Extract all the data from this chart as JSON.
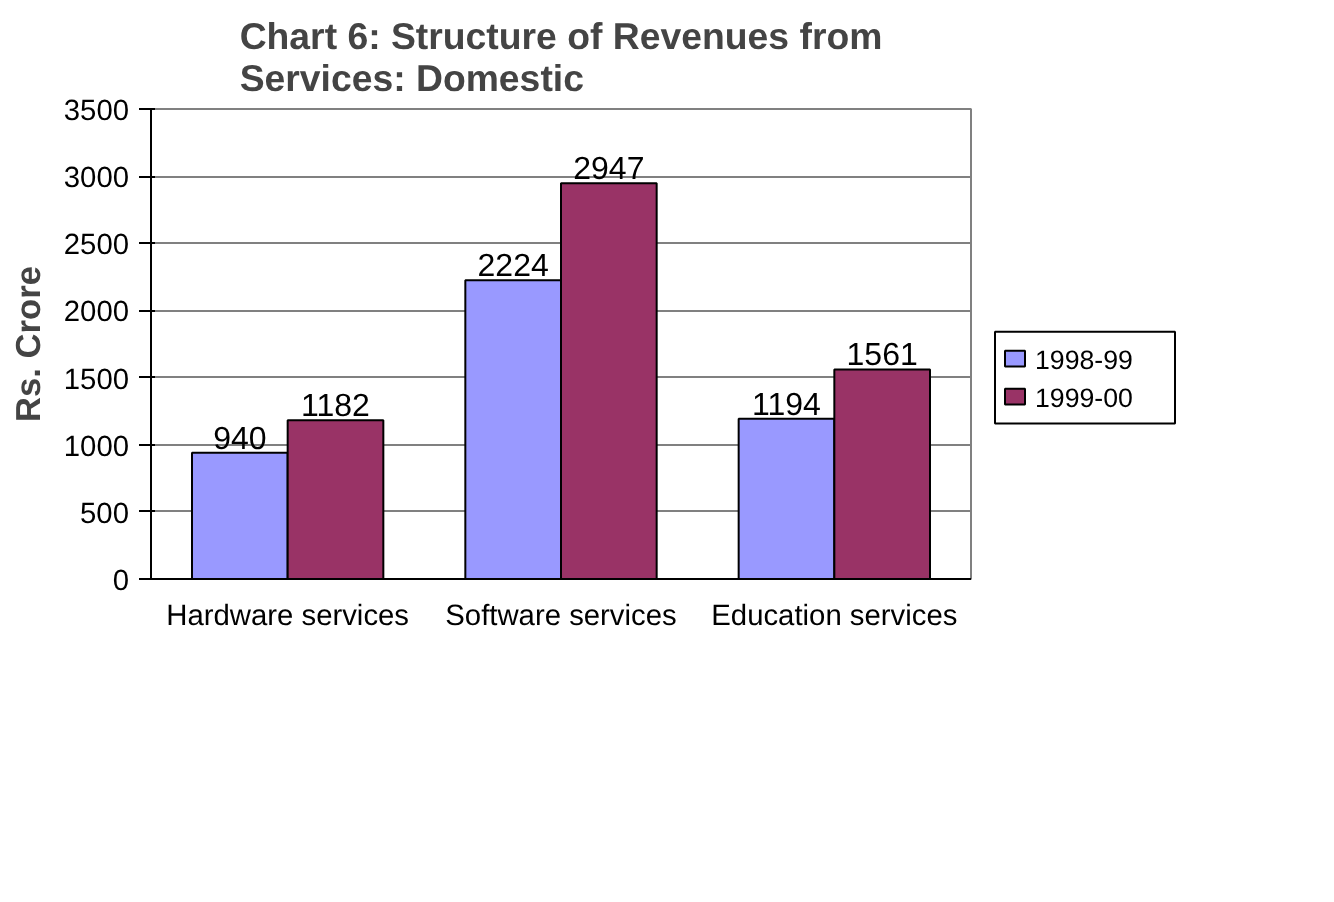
{
  "chart_data": {
    "type": "bar",
    "title": "Chart 6: Structure of Revenues from Services: Domestic",
    "ylabel": "Rs. Crore",
    "categories": [
      "Hardware services",
      "Software services",
      "Education services"
    ],
    "series": [
      {
        "name": "1998-99",
        "color": "#9999ff",
        "values": [
          940,
          2224,
          1194
        ]
      },
      {
        "name": "1999-00",
        "color": "#993366",
        "values": [
          1182,
          2947,
          1561
        ]
      }
    ],
    "ylim": [
      0,
      3500
    ],
    "yticks": [
      0,
      500,
      1000,
      1500,
      2000,
      2500,
      3000,
      3500
    ],
    "grid": "y",
    "legend": "right",
    "data_labels": true
  }
}
